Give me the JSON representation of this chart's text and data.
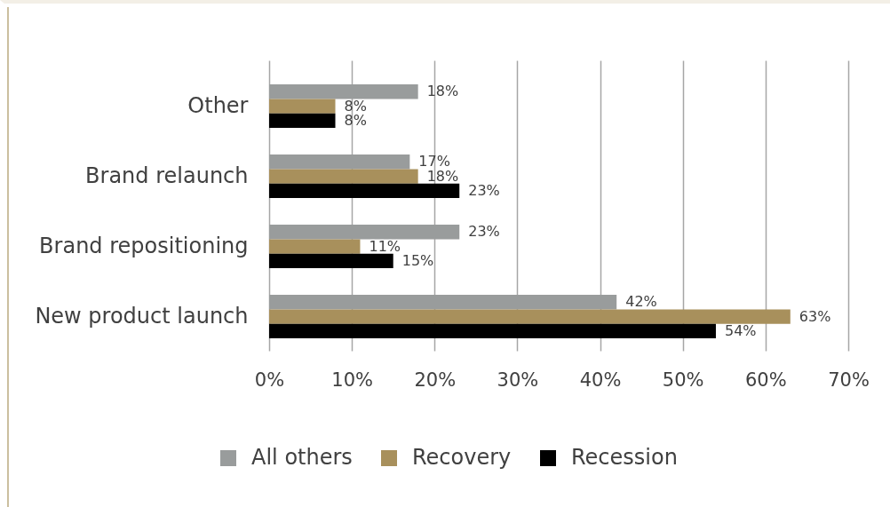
{
  "chart_data": {
    "type": "bar",
    "orientation": "horizontal",
    "categories": [
      "Other",
      "Brand relaunch",
      "Brand repositioning",
      "New product launch"
    ],
    "series": [
      {
        "name": "All others",
        "color": "#999c9c",
        "values": [
          18,
          17,
          23,
          42
        ],
        "value_labels": [
          "18%",
          "17%",
          "23%",
          "42%"
        ]
      },
      {
        "name": "Recovery",
        "color": "#a8905c",
        "values": [
          8,
          18,
          11,
          63
        ],
        "value_labels": [
          "8%",
          "18%",
          "11%",
          "63%"
        ]
      },
      {
        "name": "Recession",
        "color": "#000000",
        "values": [
          8,
          23,
          15,
          54
        ],
        "value_labels": [
          "8%",
          "23%",
          "15%",
          "54%"
        ]
      }
    ],
    "xlim": [
      0,
      70
    ],
    "xticks": [
      {
        "value": 0,
        "label": "0%"
      },
      {
        "value": 10,
        "label": "10%"
      },
      {
        "value": 20,
        "label": "20%"
      },
      {
        "value": 30,
        "label": "30%"
      },
      {
        "value": 40,
        "label": "40%"
      },
      {
        "value": 50,
        "label": "50%"
      },
      {
        "value": 60,
        "label": "60%"
      },
      {
        "value": 70,
        "label": "70%"
      }
    ],
    "grid": "x",
    "legend": "bottom"
  }
}
